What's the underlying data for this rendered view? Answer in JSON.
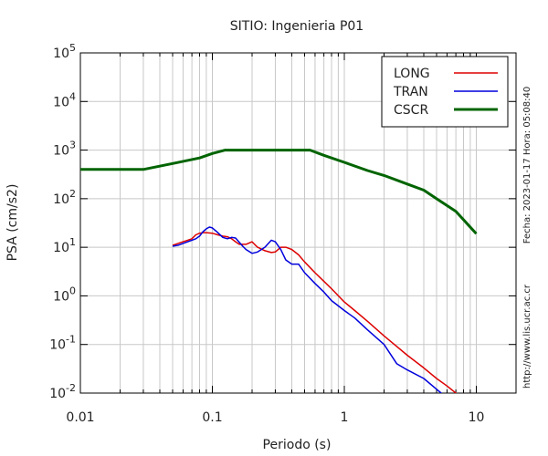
{
  "chart_data": {
    "type": "line",
    "title": "SITIO: Ingenieria P01",
    "xlabel": "Periodo (s)",
    "ylabel": "PSA (cm/s2)",
    "x_scale": "log",
    "y_scale": "log",
    "xlim": [
      0.01,
      20
    ],
    "ylim": [
      0.01,
      100000
    ],
    "grid": true,
    "legend_position": "top-right",
    "x_ticks": [
      {
        "value": 0.01,
        "label": "0.01"
      },
      {
        "value": 0.1,
        "label": "0.1"
      },
      {
        "value": 1,
        "label": "1"
      },
      {
        "value": 10,
        "label": "10"
      }
    ],
    "y_ticks": [
      {
        "value": 0.01,
        "base": "10",
        "exp": "-2"
      },
      {
        "value": 0.1,
        "base": "10",
        "exp": "-1"
      },
      {
        "value": 1,
        "base": "10",
        "exp": "0"
      },
      {
        "value": 10,
        "base": "10",
        "exp": "1"
      },
      {
        "value": 100,
        "base": "10",
        "exp": "2"
      },
      {
        "value": 1000,
        "base": "10",
        "exp": "3"
      },
      {
        "value": 10000,
        "base": "10",
        "exp": "4"
      },
      {
        "value": 100000,
        "base": "10",
        "exp": "5"
      }
    ],
    "series": [
      {
        "name": "LONG",
        "color": "#dd0000",
        "x": [
          0.05,
          0.055,
          0.06,
          0.065,
          0.07,
          0.075,
          0.08,
          0.085,
          0.09,
          0.1,
          0.11,
          0.12,
          0.13,
          0.14,
          0.15,
          0.16,
          0.18,
          0.2,
          0.22,
          0.25,
          0.28,
          0.3,
          0.33,
          0.36,
          0.4,
          0.45,
          0.5,
          0.6,
          0.7,
          0.8,
          1,
          1.2,
          1.5,
          2,
          3,
          4,
          5,
          6,
          7,
          8
        ],
        "y": [
          11,
          12,
          13,
          14,
          15,
          18,
          19.5,
          20,
          20,
          19.5,
          18,
          17,
          16.5,
          15,
          13,
          11.5,
          11.5,
          13,
          10,
          8.5,
          7.8,
          8,
          10,
          10,
          9,
          7,
          5,
          3,
          2,
          1.4,
          0.75,
          0.5,
          0.3,
          0.15,
          0.06,
          0.033,
          0.02,
          0.014,
          0.01,
          0.007
        ]
      },
      {
        "name": "TRAN",
        "color": "#0000dd",
        "x": [
          0.05,
          0.055,
          0.06,
          0.07,
          0.075,
          0.08,
          0.085,
          0.09,
          0.095,
          0.1,
          0.11,
          0.12,
          0.13,
          0.14,
          0.15,
          0.17,
          0.18,
          0.2,
          0.22,
          0.25,
          0.28,
          0.3,
          0.33,
          0.36,
          0.4,
          0.45,
          0.5,
          0.6,
          0.7,
          0.8,
          1,
          1.2,
          1.5,
          2,
          2.5,
          3,
          4,
          5,
          6
        ],
        "y": [
          10.5,
          11,
          12,
          14,
          15,
          17,
          21,
          24,
          26,
          25,
          20,
          16,
          15,
          16,
          15.5,
          10.5,
          9,
          7.5,
          8,
          10,
          14,
          13,
          9,
          5.5,
          4.5,
          4.5,
          3,
          1.8,
          1.2,
          0.8,
          0.5,
          0.35,
          0.2,
          0.1,
          0.04,
          0.03,
          0.02,
          0.012,
          0.008
        ]
      },
      {
        "name": "CSCR",
        "color": "#006400",
        "x": [
          0.01,
          0.02,
          0.03,
          0.05,
          0.08,
          0.1,
          0.125,
          0.2,
          0.3,
          0.4,
          0.55,
          0.7,
          1,
          1.5,
          2,
          3,
          4,
          5,
          7,
          10
        ],
        "y": [
          400,
          400,
          400,
          530,
          690,
          850,
          1000,
          1000,
          1000,
          1000,
          1000,
          780,
          560,
          380,
          300,
          200,
          150,
          100,
          55,
          19
        ]
      }
    ]
  },
  "side_text": {
    "date": "Fecha: 2023-01-17 Hora: 05:08:40",
    "url": "http://www.lis.ucr.ac.cr"
  }
}
